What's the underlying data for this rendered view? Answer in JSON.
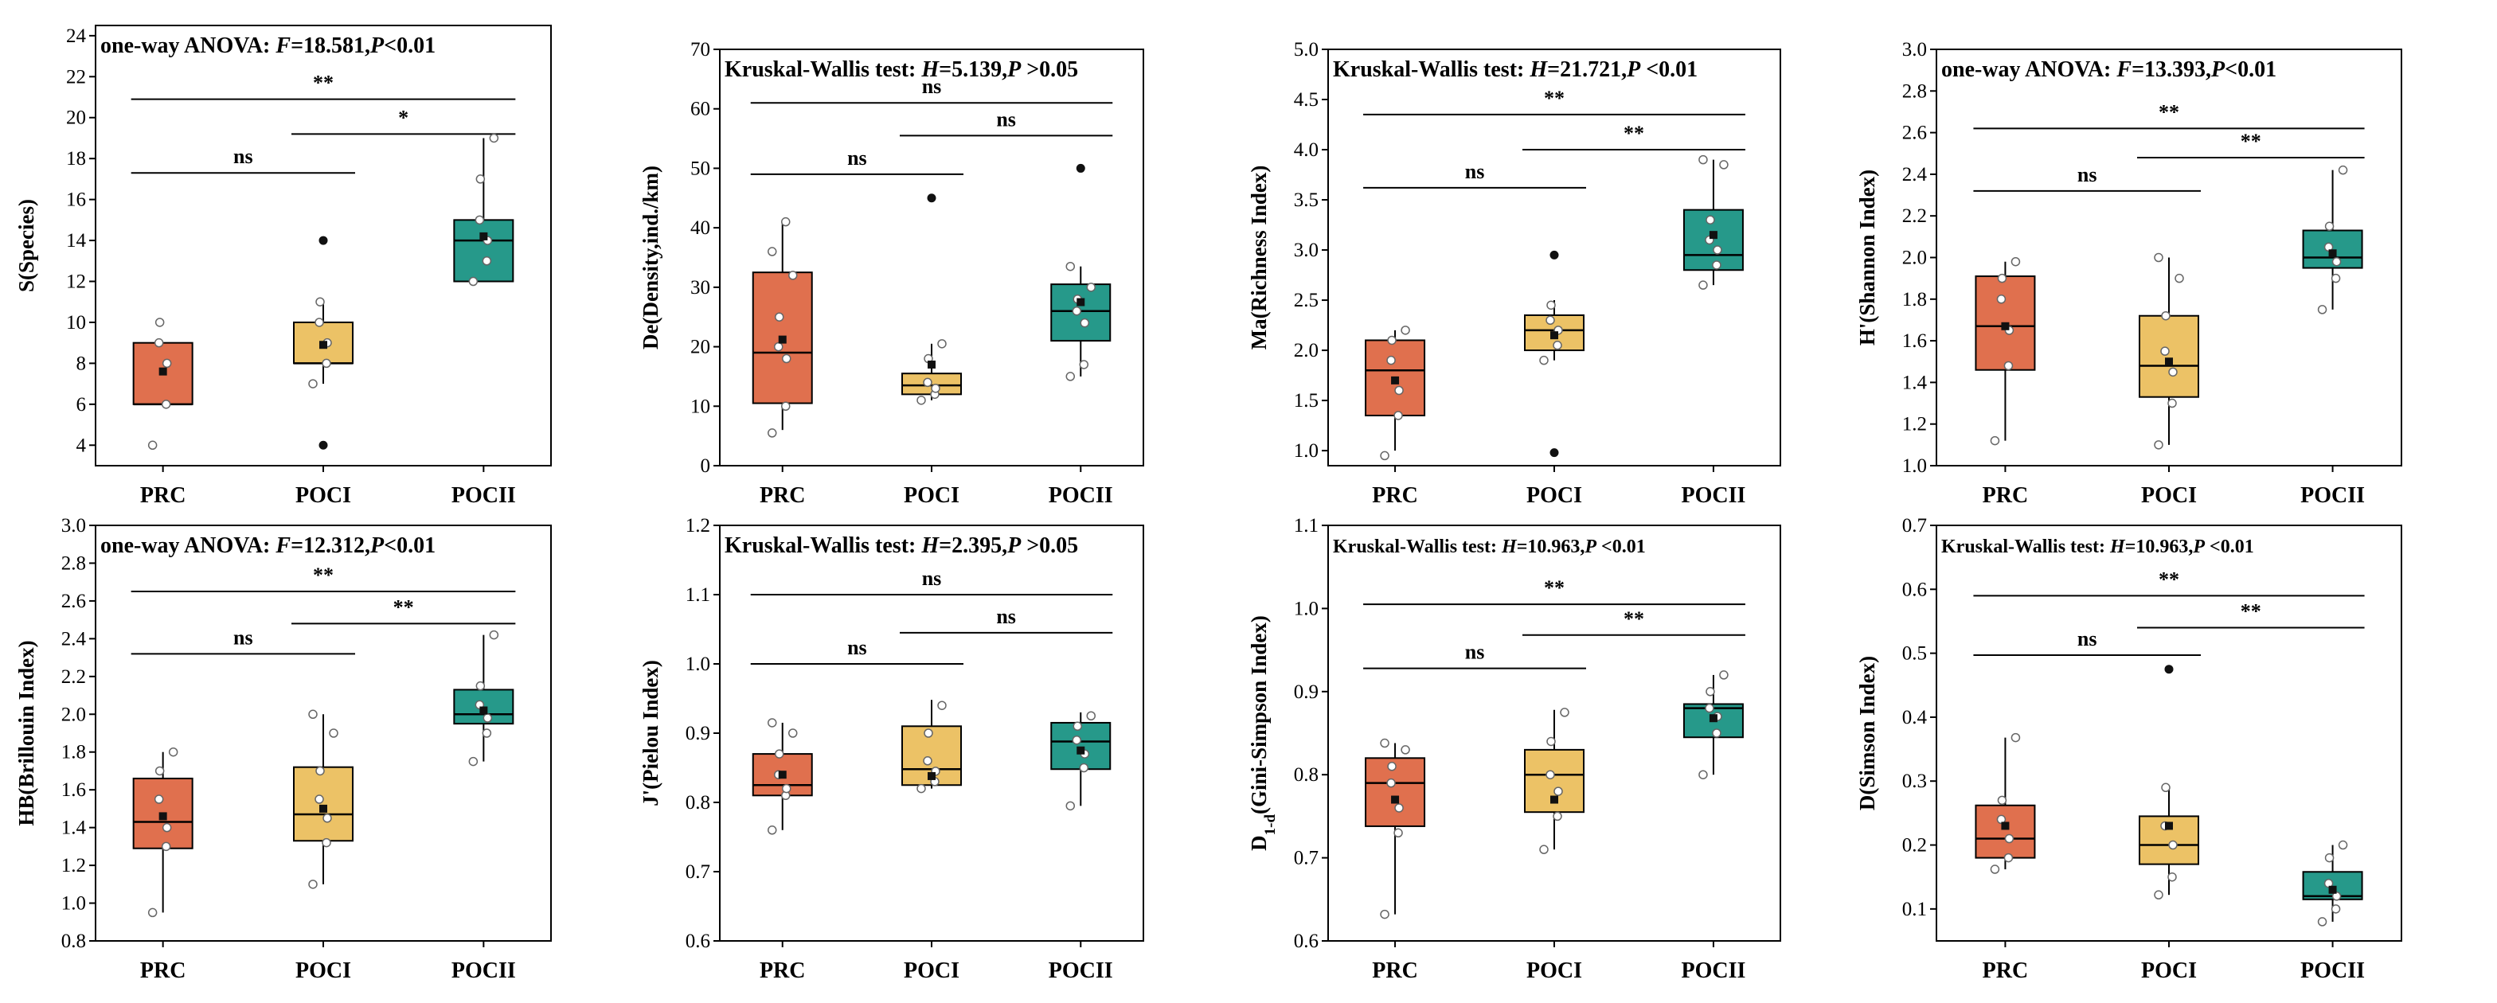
{
  "colors": {
    "PRC": "#E0704E",
    "POCI": "#ECC266",
    "POCII": "#26998A"
  },
  "chart_data": [
    {
      "type": "box",
      "id": "species",
      "ylabel": "S(Species)",
      "ylim": [
        3,
        24.5
      ],
      "yticks": [
        4,
        6,
        8,
        10,
        12,
        14,
        16,
        18,
        20,
        22,
        24
      ],
      "stat": {
        "prefix": "one-way ANOVA: ",
        "var": "F",
        "val": "=18.581,",
        "pvar": "P",
        "pval": "<0.01",
        "small": false,
        "anchor": "left"
      },
      "categories": [
        "PRC",
        "POCI",
        "POCII"
      ],
      "boxes": [
        {
          "q1": 6,
          "median": 6,
          "q3": 9,
          "wlo": 6,
          "whi": 9,
          "mean": 7.6,
          "points": [
            4,
            6,
            8,
            9,
            10
          ]
        },
        {
          "q1": 8,
          "median": 8,
          "q3": 10,
          "wlo": 7,
          "whi": 11,
          "mean": 8.9,
          "points": [
            7,
            8,
            9,
            10,
            11
          ],
          "outliers": [
            14,
            4
          ]
        },
        {
          "q1": 12,
          "median": 14,
          "q3": 15,
          "wlo": 12,
          "whi": 19,
          "mean": 14.2,
          "points": [
            12,
            13,
            14,
            15,
            17,
            19
          ]
        }
      ],
      "sig": [
        {
          "from": 0,
          "to": 2,
          "y": 20.9,
          "label": "**"
        },
        {
          "from": 0,
          "to": 1,
          "y": 17.3,
          "label": "ns"
        },
        {
          "from": 1,
          "to": 2,
          "y": 19.2,
          "label": "*"
        }
      ]
    },
    {
      "type": "box",
      "id": "density",
      "ylabel": "De(Density,ind./km)",
      "ylim": [
        0,
        70
      ],
      "yticks": [
        0,
        10,
        20,
        30,
        40,
        50,
        60,
        70
      ],
      "stat": {
        "prefix": "Kruskal-Wallis test: ",
        "var": "H",
        "val": "=5.139,",
        "pvar": "P",
        "pval": " >0.05",
        "small": false,
        "anchor": "left"
      },
      "categories": [
        "PRC",
        "POCI",
        "POCII"
      ],
      "boxes": [
        {
          "q1": 10.5,
          "median": 19,
          "q3": 32.5,
          "wlo": 6,
          "whi": 41,
          "mean": 21.2,
          "points": [
            5.5,
            10,
            18,
            20,
            25,
            32,
            36,
            41
          ]
        },
        {
          "q1": 12,
          "median": 13.5,
          "q3": 15.5,
          "wlo": 11,
          "whi": 20.5,
          "mean": 17,
          "points": [
            11,
            12,
            13,
            14,
            18,
            20.5
          ],
          "outliers": [
            45
          ]
        },
        {
          "q1": 21,
          "median": 26,
          "q3": 30.5,
          "wlo": 15,
          "whi": 33.5,
          "mean": 27.5,
          "points": [
            15,
            17,
            24,
            26,
            28,
            30,
            33.5
          ],
          "outliers": [
            50
          ]
        }
      ],
      "sig": [
        {
          "from": 0,
          "to": 2,
          "y": 61,
          "label": "ns"
        },
        {
          "from": 0,
          "to": 1,
          "y": 49,
          "label": "ns"
        },
        {
          "from": 1,
          "to": 2,
          "y": 55.5,
          "label": "ns"
        }
      ]
    },
    {
      "type": "box",
      "id": "richness",
      "ylabel": "Ma(Richness Index)",
      "ylim": [
        0.85,
        5.0
      ],
      "yticks": [
        1.0,
        1.5,
        2.0,
        2.5,
        3.0,
        3.5,
        4.0,
        4.5,
        5.0
      ],
      "decimals": 1,
      "stat": {
        "prefix": "Kruskal-Wallis test: ",
        "var": "H",
        "val": "=21.721,",
        "pvar": "P",
        "pval": " <0.01",
        "small": false,
        "anchor": "left"
      },
      "categories": [
        "PRC",
        "POCI",
        "POCII"
      ],
      "boxes": [
        {
          "q1": 1.35,
          "median": 1.8,
          "q3": 2.1,
          "wlo": 1.0,
          "whi": 2.2,
          "mean": 1.7,
          "points": [
            0.95,
            1.35,
            1.6,
            1.9,
            2.1,
            2.2
          ]
        },
        {
          "q1": 2.0,
          "median": 2.2,
          "q3": 2.35,
          "wlo": 1.9,
          "whi": 2.5,
          "mean": 2.15,
          "points": [
            1.9,
            2.05,
            2.2,
            2.3,
            2.45
          ],
          "outliers": [
            2.95,
            0.98
          ]
        },
        {
          "q1": 2.8,
          "median": 2.95,
          "q3": 3.4,
          "wlo": 2.65,
          "whi": 3.9,
          "mean": 3.15,
          "points": [
            2.65,
            2.85,
            3.0,
            3.1,
            3.3,
            3.85,
            3.9
          ]
        }
      ],
      "sig": [
        {
          "from": 0,
          "to": 2,
          "y": 4.35,
          "label": "**"
        },
        {
          "from": 0,
          "to": 1,
          "y": 3.62,
          "label": "ns"
        },
        {
          "from": 1,
          "to": 2,
          "y": 4.0,
          "label": "**"
        }
      ]
    },
    {
      "type": "box",
      "id": "shannon",
      "ylabel": "H'(Shannon Index)",
      "ylim": [
        1.0,
        3.0
      ],
      "yticks": [
        1.0,
        1.2,
        1.4,
        1.6,
        1.8,
        2.0,
        2.2,
        2.4,
        2.6,
        2.8,
        3.0
      ],
      "decimals": 1,
      "stat": {
        "prefix": "one-way ANOVA: ",
        "var": "F",
        "val": "=13.393,",
        "pvar": "P",
        "pval": "<0.01",
        "small": false,
        "anchor": "left"
      },
      "categories": [
        "PRC",
        "POCI",
        "POCII"
      ],
      "boxes": [
        {
          "q1": 1.46,
          "median": 1.67,
          "q3": 1.91,
          "wlo": 1.12,
          "whi": 1.98,
          "mean": 1.67,
          "points": [
            1.12,
            1.48,
            1.65,
            1.8,
            1.9,
            1.98
          ]
        },
        {
          "q1": 1.33,
          "median": 1.48,
          "q3": 1.72,
          "wlo": 1.1,
          "whi": 2.0,
          "mean": 1.5,
          "points": [
            1.1,
            1.3,
            1.45,
            1.55,
            1.72,
            1.9,
            2.0
          ]
        },
        {
          "q1": 1.95,
          "median": 2.0,
          "q3": 2.13,
          "wlo": 1.75,
          "whi": 2.42,
          "mean": 2.02,
          "points": [
            1.75,
            1.9,
            1.98,
            2.05,
            2.15,
            2.42
          ]
        }
      ],
      "sig": [
        {
          "from": 0,
          "to": 2,
          "y": 2.62,
          "label": "**"
        },
        {
          "from": 0,
          "to": 1,
          "y": 2.32,
          "label": "ns"
        },
        {
          "from": 1,
          "to": 2,
          "y": 2.48,
          "label": "**"
        }
      ]
    },
    {
      "type": "box",
      "id": "brillouin",
      "ylabel": "HB(Brillouin Index)",
      "ylim": [
        0.8,
        3.0
      ],
      "yticks": [
        0.8,
        1.0,
        1.2,
        1.4,
        1.6,
        1.8,
        2.0,
        2.2,
        2.4,
        2.6,
        2.8,
        3.0
      ],
      "decimals": 1,
      "stat": {
        "prefix": "one-way ANOVA: ",
        "var": "F",
        "val": "=12.312,",
        "pvar": "P",
        "pval": "<0.01",
        "small": false,
        "anchor": "left"
      },
      "categories": [
        "PRC",
        "POCI",
        "POCII"
      ],
      "boxes": [
        {
          "q1": 1.29,
          "median": 1.43,
          "q3": 1.66,
          "wlo": 0.95,
          "whi": 1.8,
          "mean": 1.46,
          "points": [
            0.95,
            1.3,
            1.4,
            1.55,
            1.7,
            1.8
          ]
        },
        {
          "q1": 1.33,
          "median": 1.47,
          "q3": 1.72,
          "wlo": 1.1,
          "whi": 2.0,
          "mean": 1.5,
          "points": [
            1.1,
            1.32,
            1.45,
            1.55,
            1.7,
            1.9,
            2.0
          ]
        },
        {
          "q1": 1.95,
          "median": 2.0,
          "q3": 2.13,
          "wlo": 1.75,
          "whi": 2.42,
          "mean": 2.02,
          "points": [
            1.75,
            1.9,
            1.98,
            2.05,
            2.15,
            2.42
          ]
        }
      ],
      "sig": [
        {
          "from": 0,
          "to": 2,
          "y": 2.65,
          "label": "**"
        },
        {
          "from": 0,
          "to": 1,
          "y": 2.32,
          "label": "ns"
        },
        {
          "from": 1,
          "to": 2,
          "y": 2.48,
          "label": "**"
        }
      ]
    },
    {
      "type": "box",
      "id": "pielou",
      "ylabel": "J'(Pielou Index)",
      "ylim": [
        0.6,
        1.2
      ],
      "yticks": [
        0.6,
        0.7,
        0.8,
        0.9,
        1.0,
        1.1,
        1.2
      ],
      "decimals": 1,
      "stat": {
        "prefix": "Kruskal-Wallis test: ",
        "var": "H",
        "val": "=2.395,",
        "pvar": "P",
        "pval": " >0.05",
        "small": false,
        "anchor": "left"
      },
      "categories": [
        "PRC",
        "POCI",
        "POCII"
      ],
      "boxes": [
        {
          "q1": 0.81,
          "median": 0.825,
          "q3": 0.87,
          "wlo": 0.76,
          "whi": 0.915,
          "mean": 0.84,
          "points": [
            0.76,
            0.81,
            0.82,
            0.84,
            0.87,
            0.9,
            0.915
          ]
        },
        {
          "q1": 0.825,
          "median": 0.848,
          "q3": 0.91,
          "wlo": 0.82,
          "whi": 0.948,
          "mean": 0.838,
          "points": [
            0.82,
            0.83,
            0.845,
            0.86,
            0.9,
            0.94
          ]
        },
        {
          "q1": 0.848,
          "median": 0.888,
          "q3": 0.915,
          "wlo": 0.795,
          "whi": 0.93,
          "mean": 0.875,
          "points": [
            0.795,
            0.85,
            0.87,
            0.89,
            0.91,
            0.925
          ]
        }
      ],
      "sig": [
        {
          "from": 0,
          "to": 2,
          "y": 1.1,
          "label": "ns"
        },
        {
          "from": 0,
          "to": 1,
          "y": 1.0,
          "label": "ns"
        },
        {
          "from": 1,
          "to": 2,
          "y": 1.045,
          "label": "ns"
        }
      ]
    },
    {
      "type": "box",
      "id": "gini",
      "ylabel": "D",
      "ylabelSub": "1-d",
      "ylabelRest": "(Gini-Simpson Index)",
      "ylim": [
        0.6,
        1.1
      ],
      "yticks": [
        0.6,
        0.7,
        0.8,
        0.9,
        1.0,
        1.1
      ],
      "decimals": 1,
      "stat": {
        "prefix": "Kruskal-Wallis test: ",
        "var": "H",
        "val": "=10.963,",
        "pvar": "P",
        "pval": " <0.01",
        "small": true,
        "anchor": "left"
      },
      "categories": [
        "PRC",
        "POCI",
        "POCII"
      ],
      "boxes": [
        {
          "q1": 0.738,
          "median": 0.79,
          "q3": 0.82,
          "wlo": 0.632,
          "whi": 0.838,
          "mean": 0.77,
          "points": [
            0.632,
            0.73,
            0.76,
            0.79,
            0.81,
            0.83,
            0.838
          ]
        },
        {
          "q1": 0.755,
          "median": 0.8,
          "q3": 0.83,
          "wlo": 0.71,
          "whi": 0.878,
          "mean": 0.77,
          "points": [
            0.71,
            0.75,
            0.78,
            0.8,
            0.84,
            0.875
          ]
        },
        {
          "q1": 0.845,
          "median": 0.88,
          "q3": 0.885,
          "wlo": 0.8,
          "whi": 0.92,
          "mean": 0.868,
          "points": [
            0.8,
            0.85,
            0.87,
            0.88,
            0.9,
            0.92
          ]
        }
      ],
      "sig": [
        {
          "from": 0,
          "to": 2,
          "y": 1.005,
          "label": "**"
        },
        {
          "from": 0,
          "to": 1,
          "y": 0.928,
          "label": "ns"
        },
        {
          "from": 1,
          "to": 2,
          "y": 0.968,
          "label": "**"
        }
      ]
    },
    {
      "type": "box",
      "id": "simpson",
      "ylabel": "D(Simson Index)",
      "ylim": [
        0.05,
        0.7
      ],
      "yticks": [
        0.1,
        0.2,
        0.3,
        0.4,
        0.5,
        0.6,
        0.7
      ],
      "decimals": 1,
      "stat": {
        "prefix": "Kruskal-Wallis test: ",
        "var": "H",
        "val": "=10.963,",
        "pvar": "P",
        "pval": " <0.01",
        "small": true,
        "anchor": "left"
      },
      "categories": [
        "PRC",
        "POCI",
        "POCII"
      ],
      "boxes": [
        {
          "q1": 0.18,
          "median": 0.21,
          "q3": 0.262,
          "wlo": 0.162,
          "whi": 0.368,
          "mean": 0.23,
          "points": [
            0.162,
            0.18,
            0.21,
            0.24,
            0.27,
            0.368
          ]
        },
        {
          "q1": 0.17,
          "median": 0.2,
          "q3": 0.245,
          "wlo": 0.122,
          "whi": 0.29,
          "mean": 0.23,
          "points": [
            0.122,
            0.15,
            0.2,
            0.23,
            0.29
          ],
          "outliers": [
            0.475
          ]
        },
        {
          "q1": 0.115,
          "median": 0.12,
          "q3": 0.158,
          "wlo": 0.08,
          "whi": 0.2,
          "mean": 0.13,
          "points": [
            0.08,
            0.1,
            0.12,
            0.14,
            0.18,
            0.2
          ]
        }
      ],
      "sig": [
        {
          "from": 0,
          "to": 2,
          "y": 0.59,
          "label": "**"
        },
        {
          "from": 0,
          "to": 1,
          "y": 0.497,
          "label": "ns"
        },
        {
          "from": 1,
          "to": 2,
          "y": 0.54,
          "label": "**"
        }
      ]
    }
  ]
}
